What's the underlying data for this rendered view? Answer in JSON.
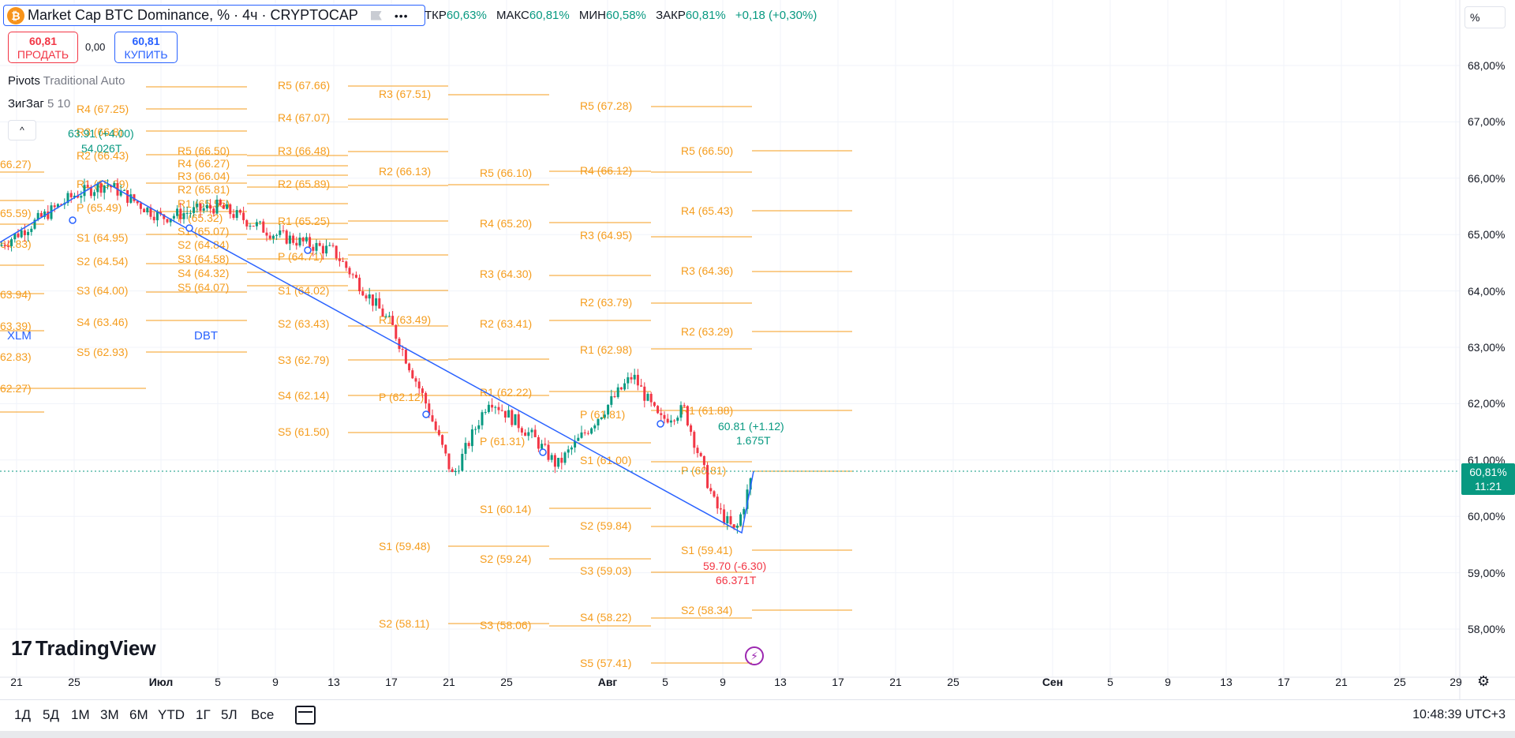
{
  "header": {
    "symbol_icon": "bitcoin-icon",
    "title": "Market Cap BTC Dominance, % · 4ч · CRYPTOCAP",
    "more": "•••"
  },
  "ohlc": {
    "open_label": "ТКР",
    "open": "60,63%",
    "high_label": "МАКС",
    "high": "60,81%",
    "low_label": "МИН",
    "low": "60,58%",
    "close_label": "ЗАКР",
    "close": "60,81%",
    "change": "+0,18 (+0,30%)"
  },
  "trade": {
    "sell_price": "60,81",
    "sell_label": "ПРОДАТЬ",
    "spread": "0,00",
    "buy_price": "60,81",
    "buy_label": "КУПИТЬ"
  },
  "indicators": {
    "pivots_name": "Pivots",
    "pivots_params": "Traditional Auto",
    "zigzag_name": "ЗигЗаг",
    "zigzag_params": "5 10",
    "collapse_glyph": "^"
  },
  "scale_mode": "%",
  "y_ticks": [
    "68,00%",
    "67,00%",
    "66,00%",
    "65,00%",
    "64,00%",
    "63,00%",
    "62,00%",
    "61,00%",
    "60,00%",
    "59,00%",
    "58,00%"
  ],
  "price_tag": {
    "value": "60,81%",
    "countdown": "11:21"
  },
  "x_ticks": [
    {
      "t": "21",
      "bold": false
    },
    {
      "t": "25",
      "bold": false
    },
    {
      "t": "Июл",
      "bold": true
    },
    {
      "t": "5",
      "bold": false
    },
    {
      "t": "9",
      "bold": false
    },
    {
      "t": "13",
      "bold": false
    },
    {
      "t": "17",
      "bold": false
    },
    {
      "t": "21",
      "bold": false
    },
    {
      "t": "25",
      "bold": false
    },
    {
      "t": "Авг",
      "bold": true
    },
    {
      "t": "5",
      "bold": false
    },
    {
      "t": "9",
      "bold": false
    },
    {
      "t": "13",
      "bold": false
    },
    {
      "t": "17",
      "bold": false
    },
    {
      "t": "21",
      "bold": false
    },
    {
      "t": "25",
      "bold": false
    },
    {
      "t": "Сен",
      "bold": true
    },
    {
      "t": "5",
      "bold": false
    },
    {
      "t": "9",
      "bold": false
    },
    {
      "t": "13",
      "bold": false
    },
    {
      "t": "17",
      "bold": false
    },
    {
      "t": "21",
      "bold": false
    },
    {
      "t": "25",
      "bold": false
    },
    {
      "t": "29",
      "bold": false
    }
  ],
  "ranges": [
    "1Д",
    "5Д",
    "1М",
    "3М",
    "6М",
    "YTD",
    "1Г",
    "5Л",
    "Все"
  ],
  "clock": "10:48:39 UTC+3",
  "brand": "TradingView",
  "symbol_tags": {
    "a": "XLM",
    "b": "DBT"
  },
  "pivot_labels": [
    "66.27)",
    "65.59)",
    "64.83)",
    "63.94)",
    "63.39)",
    "62.83)",
    "62.27)",
    "R4 (67.25)",
    "R3 (66.8)",
    "R2 (66.43)",
    "R1 (65.89)",
    "P (65.49)",
    "S1 (64.95)",
    "S2 (64.54)",
    "S3 (64.00)",
    "S4 (63.46)",
    "S5 (62.93)",
    "R5 (66.50)",
    "R4 (66.27)",
    "R3 (66.04)",
    "R2 (65.81)",
    "R1 (65.55)",
    "P (65.32)",
    "S1 (65.07)",
    "S2 (64.84)",
    "S3 (64.58)",
    "S4 (64.32)",
    "S5 (64.07)",
    "R5 (67.66)",
    "R4 (67.07)",
    "R3 (66.48)",
    "R2 (65.89)",
    "R1 (65.25)",
    "P (64.71)",
    "S1 (64.02)",
    "S2 (63.43)",
    "S3 (62.79)",
    "S4 (62.14)",
    "S5 (61.50)",
    "R3 (67.51)",
    "R2 (66.13)",
    "R1 (63.49)",
    "P (62.12)",
    "S1 (59.48)",
    "S2 (58.11)",
    "R5 (66.10)",
    "R4 (65.20)",
    "R3 (64.30)",
    "R2 (63.41)",
    "R1 (62.22)",
    "P (61.31)",
    "S1 (60.14)",
    "S2 (59.24)",
    "S3 (58.06)",
    "R5 (67.28)",
    "R4 (66.12)",
    "R3 (64.95)",
    "R2 (63.79)",
    "R1 (62.98)",
    "P (61.81)",
    "S1 (61.00)",
    "S2 (59.84)",
    "S3 (59.03)",
    "S4 (58.22)",
    "S5 (57.41)",
    "R5 (66.50)",
    "R4 (65.43)",
    "R3 (64.36)",
    "R2 (63.29)",
    "R1 (61.88)",
    "P (60.81)",
    "S1 (59.41)",
    "S2 (58.34)"
  ],
  "annotations": {
    "high_1": "63.91 (+4.00)",
    "high_1_vol": "54.026T",
    "last_1": "60.81 (+1.12)",
    "last_1_vol": "1.675T",
    "low_1": "59.70 (-6.30)",
    "low_1_vol": "66.371T"
  },
  "colors": {
    "up": "#089981",
    "down": "#f23645",
    "pivot": "#f59d1e",
    "zigzag": "#2962ff",
    "accent": "#2962ff"
  },
  "chart_data": {
    "type": "line",
    "title": "Market Cap BTC Dominance, % · 4ч · CRYPTOCAP",
    "ylim": [
      57.5,
      68.5
    ],
    "y_unit": "%",
    "series": [
      {
        "x": [
          "Jun 21",
          "Jun 25",
          "Jun 27",
          "Jul 1",
          "Jul 5",
          "Jul 9",
          "Jul 13",
          "Jul 17",
          "Jul 20",
          "Jul 22",
          "Jul 24",
          "Jul 27",
          "Jul 29",
          "Aug 2",
          "Aug 4",
          "Aug 7",
          "Aug 9",
          "Aug 10",
          "Aug 11"
        ],
        "values": [
          64.8,
          65.7,
          65.9,
          65.3,
          65.5,
          65.0,
          64.7,
          63.4,
          62.0,
          60.7,
          62.1,
          61.4,
          60.9,
          62.5,
          61.7,
          61.9,
          60.2,
          59.7,
          60.81
        ]
      }
    ]
  }
}
